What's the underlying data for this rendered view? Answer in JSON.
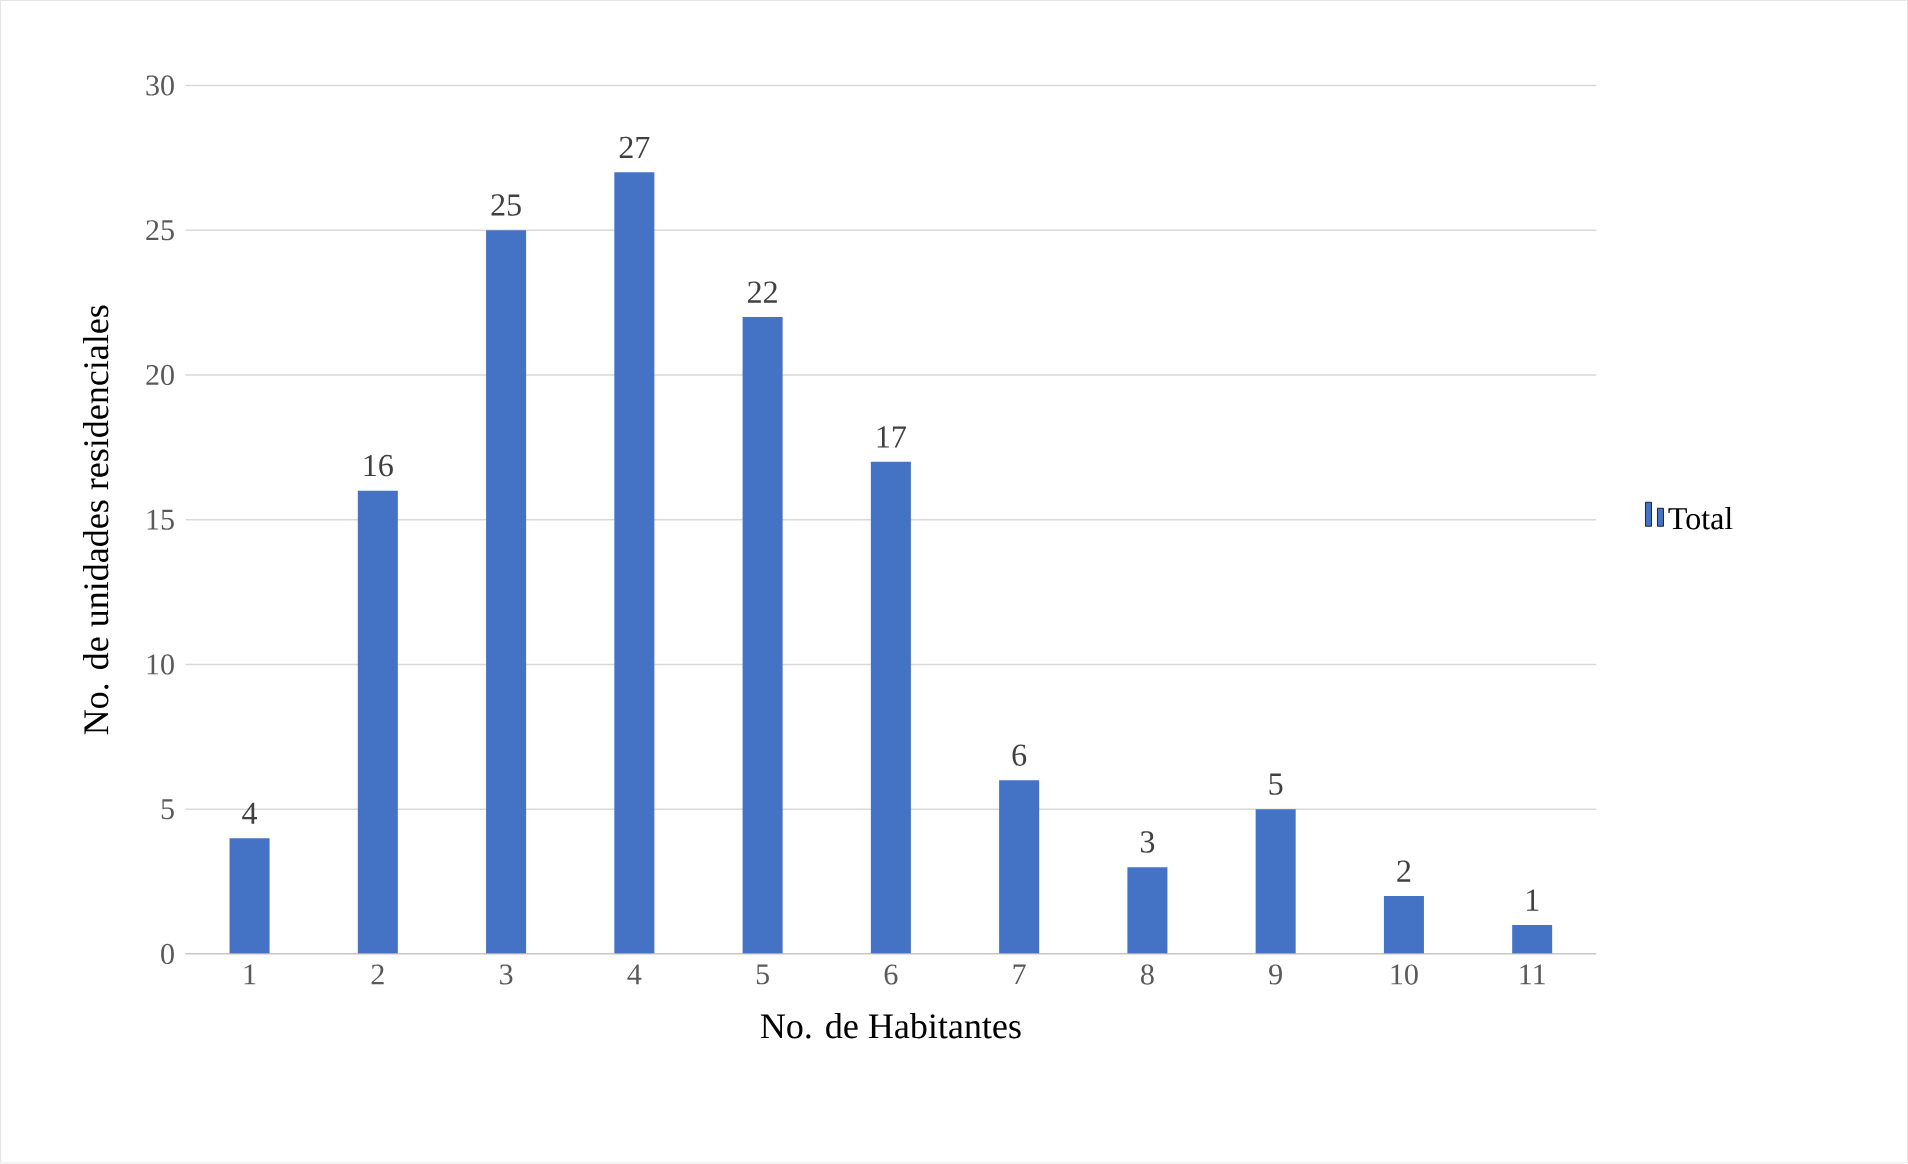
{
  "chart_data": {
    "type": "bar",
    "xlabel": "No. de Habitantes",
    "ylabel": "No. de unidades residenciales",
    "categories": [
      "1",
      "2",
      "3",
      "4",
      "5",
      "6",
      "7",
      "8",
      "9",
      "10",
      "11"
    ],
    "series": [
      {
        "name": "Total",
        "color": "#4472c4",
        "values": [
          4,
          16,
          25,
          27,
          22,
          17,
          6,
          3,
          5,
          2,
          1
        ]
      }
    ],
    "ylim": [
      0,
      30
    ],
    "yticks": [
      0,
      5,
      10,
      15,
      20,
      25,
      30
    ],
    "grid": "y",
    "legend": "right",
    "data_labels": true
  }
}
